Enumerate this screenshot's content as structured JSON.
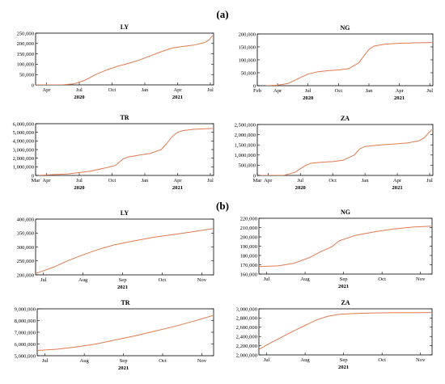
{
  "sections": [
    {
      "label": "(a)",
      "x": 275,
      "y": 22
    },
    {
      "label": "(b)",
      "x": 275,
      "y": 259
    }
  ],
  "chart_data": [
    {
      "type": "line",
      "title": "LY",
      "ylim": [
        0,
        250000
      ],
      "yticks": [
        0,
        50000,
        100000,
        150000,
        200000,
        250000
      ],
      "ytick_labels": [
        "0",
        "50,000",
        "100,000",
        "150,000",
        "200,000",
        "250,000"
      ],
      "xlim": [
        0,
        16.3
      ],
      "xticks": [
        {
          "label": "Apr",
          "x": 1
        },
        {
          "label": "Jul",
          "x": 4
        },
        {
          "label": "Oct",
          "x": 7
        },
        {
          "label": "Jan",
          "x": 10
        },
        {
          "label": "Apr",
          "x": 13
        },
        {
          "label": "Jul",
          "x": 16
        }
      ],
      "years": [
        {
          "label": "2020",
          "x": 4
        },
        {
          "label": "2021",
          "x": 13
        }
      ],
      "grid": false,
      "series": [
        {
          "x": [
            0,
            2.5,
            3.5,
            4.5,
            5.5,
            6.5,
            7.5,
            8.5,
            9.5,
            10,
            10.5,
            11.5,
            12.5,
            13.5,
            14.5,
            15.5,
            15.9,
            16.2
          ],
          "y": [
            0,
            500,
            5000,
            22000,
            50000,
            72000,
            90000,
            104000,
            120000,
            130000,
            140000,
            160000,
            178000,
            186000,
            192000,
            205000,
            218000,
            238000
          ]
        }
      ]
    },
    {
      "type": "line",
      "title": "NG",
      "ylim": [
        0,
        200000
      ],
      "yticks": [
        0,
        50000,
        100000,
        150000,
        200000
      ],
      "ytick_labels": [
        "0",
        "50,000",
        "100,000",
        "150,000",
        "200,000"
      ],
      "xlim": [
        0,
        17.3
      ],
      "xticks": [
        {
          "label": "Feb",
          "x": 0
        },
        {
          "label": "Apr",
          "x": 2
        },
        {
          "label": "Jul",
          "x": 5
        },
        {
          "label": "Oct",
          "x": 8
        },
        {
          "label": "Jan",
          "x": 11
        },
        {
          "label": "Apr",
          "x": 14
        },
        {
          "label": "Jul",
          "x": 17
        }
      ],
      "years": [
        {
          "label": "2020",
          "x": 5
        },
        {
          "label": "2021",
          "x": 14
        }
      ],
      "grid": false,
      "series": [
        {
          "x": [
            0.9,
            2,
            3,
            4,
            5,
            6,
            7,
            8,
            9,
            10,
            10.5,
            11,
            11.5,
            12.5,
            14,
            15.5,
            17.2
          ],
          "y": [
            0,
            2000,
            8000,
            27000,
            45000,
            54000,
            58000,
            61000,
            66000,
            88000,
            115000,
            140000,
            153000,
            160000,
            164000,
            165500,
            167000
          ]
        }
      ]
    },
    {
      "type": "line",
      "title": "TR",
      "ylim": [
        0,
        6000000
      ],
      "yticks": [
        0,
        1000000,
        2000000,
        3000000,
        4000000,
        5000000,
        6000000
      ],
      "ytick_labels": [
        "0",
        "1,000,000",
        "2,000,000",
        "3,000,000",
        "4,000,000",
        "5,000,000",
        "6,000,000"
      ],
      "xlim": [
        0,
        16.3
      ],
      "xticks": [
        {
          "label": "Mar",
          "x": 0
        },
        {
          "label": "Apr",
          "x": 1
        },
        {
          "label": "Jul",
          "x": 4
        },
        {
          "label": "Oct",
          "x": 7
        },
        {
          "label": "Jan",
          "x": 10
        },
        {
          "label": "Apr",
          "x": 13
        },
        {
          "label": "Jul",
          "x": 16
        }
      ],
      "years": [
        {
          "label": "2020",
          "x": 4
        },
        {
          "label": "2021",
          "x": 13
        }
      ],
      "grid": false,
      "series": [
        {
          "x": [
            0.3,
            1,
            3,
            5,
            6.5,
            7.3,
            8,
            8.5,
            9.5,
            10.5,
            11.5,
            12,
            12.5,
            13,
            13.5,
            14.5,
            16.2
          ],
          "y": [
            0,
            60000,
            180000,
            500000,
            900000,
            1150000,
            1900000,
            2150000,
            2350000,
            2550000,
            3000000,
            3700000,
            4500000,
            5000000,
            5200000,
            5350000,
            5450000
          ]
        }
      ]
    },
    {
      "type": "line",
      "title": "ZA",
      "ylim": [
        0,
        2500000
      ],
      "yticks": [
        0,
        500000,
        1000000,
        1500000,
        2000000,
        2500000
      ],
      "ytick_labels": [
        "0",
        "500,000",
        "1,000,000",
        "1,500,000",
        "2,000,000",
        "2,500,000"
      ],
      "xlim": [
        0,
        16.3
      ],
      "xticks": [
        {
          "label": "Mar",
          "x": 0
        },
        {
          "label": "Apr",
          "x": 1
        },
        {
          "label": "Jul",
          "x": 4
        },
        {
          "label": "Oct",
          "x": 7
        },
        {
          "label": "Jan",
          "x": 10
        },
        {
          "label": "Apr",
          "x": 13
        },
        {
          "label": "Jul",
          "x": 16
        }
      ],
      "years": [
        {
          "label": "2020",
          "x": 4
        },
        {
          "label": "2021",
          "x": 13
        }
      ],
      "grid": false,
      "series": [
        {
          "x": [
            0.3,
            2.5,
            3.5,
            4,
            4.5,
            5,
            6,
            7,
            8,
            9,
            9.5,
            10,
            11,
            12,
            13,
            14,
            15,
            15.5,
            16.2
          ],
          "y": [
            0,
            10000,
            150000,
            330000,
            500000,
            600000,
            650000,
            680000,
            750000,
            1000000,
            1300000,
            1420000,
            1480000,
            1520000,
            1550000,
            1600000,
            1700000,
            1850000,
            2250000
          ]
        }
      ]
    },
    {
      "type": "line",
      "title": "LY",
      "ylim": [
        200000,
        400000
      ],
      "yticks": [
        200000,
        250000,
        300000,
        350000,
        400000
      ],
      "ytick_labels": [
        "200,000",
        "250,000",
        "300,000",
        "350,000",
        "400,000"
      ],
      "xlim": [
        0,
        4.5
      ],
      "xticks": [
        {
          "label": "Jul",
          "x": 0.2
        },
        {
          "label": "Aug",
          "x": 1.2
        },
        {
          "label": "Sep",
          "x": 2.2
        },
        {
          "label": "Oct",
          "x": 3.2
        },
        {
          "label": "Nov",
          "x": 4.2
        }
      ],
      "years": [
        {
          "label": "2021",
          "x": 2.2
        }
      ],
      "grid": false,
      "series": [
        {
          "x": [
            0,
            0.2,
            0.5,
            0.8,
            1.2,
            1.6,
            2.0,
            2.5,
            3.0,
            3.5,
            4.0,
            4.5
          ],
          "y": [
            205000,
            215000,
            230000,
            250000,
            272000,
            292000,
            308000,
            322000,
            335000,
            345000,
            355000,
            366000
          ]
        }
      ]
    },
    {
      "type": "line",
      "title": "NG",
      "ylim": [
        160000,
        220000
      ],
      "yticks": [
        160000,
        170000,
        180000,
        190000,
        200000,
        210000,
        220000
      ],
      "ytick_labels": [
        "160,000",
        "170,000",
        "180,000",
        "190,000",
        "200,000",
        "210,000",
        "220,000"
      ],
      "xlim": [
        0,
        4.5
      ],
      "xticks": [
        {
          "label": "Jul",
          "x": 0.2
        },
        {
          "label": "Aug",
          "x": 1.2
        },
        {
          "label": "Sep",
          "x": 2.2
        },
        {
          "label": "Oct",
          "x": 3.2
        },
        {
          "label": "Nov",
          "x": 4.2
        }
      ],
      "years": [
        {
          "label": "2021",
          "x": 2.2
        }
      ],
      "grid": false,
      "series": [
        {
          "x": [
            0,
            0.5,
            0.9,
            1.3,
            1.6,
            1.9,
            2.0,
            2.1,
            2.5,
            3.0,
            3.5,
            4.0,
            4.5
          ],
          "y": [
            168000,
            168800,
            171500,
            177500,
            184000,
            189500,
            193000,
            196000,
            201500,
            205500,
            208500,
            210500,
            211500
          ]
        }
      ]
    },
    {
      "type": "line",
      "title": "TR",
      "ylim": [
        5000000,
        9000000
      ],
      "yticks": [
        5000000,
        6000000,
        7000000,
        8000000,
        9000000
      ],
      "ytick_labels": [
        "5,000,000",
        "6,000,000",
        "7,000,000",
        "8,000,000",
        "9,000,000"
      ],
      "xlim": [
        0,
        4.5
      ],
      "xticks": [
        {
          "label": "Jul",
          "x": 0.2
        },
        {
          "label": "Aug",
          "x": 1.2
        },
        {
          "label": "Sep",
          "x": 2.2
        },
        {
          "label": "Oct",
          "x": 3.2
        },
        {
          "label": "Nov",
          "x": 4.2
        }
      ],
      "years": [
        {
          "label": "2021",
          "x": 2.2
        }
      ],
      "grid": false,
      "series": [
        {
          "x": [
            0,
            0.5,
            1,
            1.5,
            2,
            2.5,
            3,
            3.5,
            4,
            4.5
          ],
          "y": [
            5450000,
            5550000,
            5750000,
            6000000,
            6350000,
            6700000,
            7100000,
            7500000,
            7950000,
            8450000
          ]
        }
      ]
    },
    {
      "type": "line",
      "title": "ZA",
      "ylim": [
        2000000,
        3000000
      ],
      "yticks": [
        2000000,
        2200000,
        2400000,
        2600000,
        2800000,
        3000000
      ],
      "ytick_labels": [
        "2,000,000",
        "2,200,000",
        "2,400,000",
        "2,600,000",
        "2,800,000",
        "3,000,000"
      ],
      "xlim": [
        0,
        4.5
      ],
      "xticks": [
        {
          "label": "Jul",
          "x": 0.2
        },
        {
          "label": "Aug",
          "x": 1.2
        },
        {
          "label": "Sep",
          "x": 2.2
        },
        {
          "label": "Oct",
          "x": 3.2
        },
        {
          "label": "Nov",
          "x": 4.2
        }
      ],
      "years": [
        {
          "label": "2021",
          "x": 2.2
        }
      ],
      "grid": false,
      "series": [
        {
          "x": [
            0,
            0.3,
            0.6,
            0.9,
            1.2,
            1.5,
            1.8,
            2.1,
            2.5,
            3.0,
            3.5,
            4.0,
            4.5
          ],
          "y": [
            2120000,
            2260000,
            2390000,
            2520000,
            2640000,
            2760000,
            2840000,
            2880000,
            2900000,
            2910000,
            2915000,
            2915000,
            2920000
          ]
        }
      ]
    }
  ],
  "colors": {
    "line": "#e07a4f",
    "axis": "#000000"
  }
}
